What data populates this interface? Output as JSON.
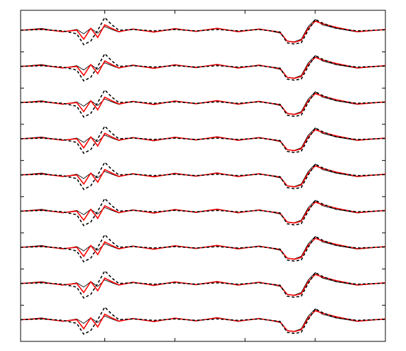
{
  "chart_data": {
    "type": "line",
    "x": [
      0,
      0.3,
      0.6,
      0.8,
      0.9,
      1.0,
      1.1,
      1.2,
      1.3,
      1.4,
      1.6,
      1.9,
      2.2,
      2.5,
      2.8,
      3.1,
      3.4,
      3.7,
      3.8,
      3.9,
      4.0,
      4.1,
      4.2,
      4.3,
      4.5,
      4.8,
      5.2
    ],
    "xlim": [
      0,
      5.2
    ],
    "ylim": [
      0,
      9.15
    ],
    "xticks": [
      1.2,
      2.2,
      3.2,
      4.2
    ],
    "yticks": [
      1,
      2,
      3,
      4,
      5,
      6,
      7,
      8
    ],
    "series": [
      {
        "color": "#000000",
        "values": [
          8.6,
          8.65,
          8.55,
          8.62,
          8.5,
          8.65,
          8.52,
          8.7,
          8.62,
          8.55,
          8.64,
          8.54,
          8.65,
          8.56,
          8.66,
          8.55,
          8.64,
          8.52,
          8.3,
          8.28,
          8.35,
          8.7,
          8.9,
          8.75,
          8.65,
          8.55,
          8.62
        ]
      },
      {
        "color": "#ff0000",
        "values": [
          8.6,
          8.63,
          8.56,
          8.6,
          8.35,
          8.65,
          8.4,
          8.75,
          8.65,
          8.56,
          8.63,
          8.55,
          8.64,
          8.57,
          8.65,
          8.56,
          8.63,
          8.54,
          8.3,
          8.27,
          8.32,
          8.65,
          8.85,
          8.78,
          8.68,
          8.56,
          8.62
        ]
      },
      {
        "color": "#000000",
        "dashed": true,
        "values": [
          8.6,
          8.62,
          8.58,
          8.5,
          8.2,
          8.3,
          8.6,
          8.95,
          8.75,
          8.6,
          8.62,
          8.58,
          8.62,
          8.58,
          8.62,
          8.58,
          8.62,
          8.55,
          8.25,
          8.22,
          8.25,
          8.6,
          8.9,
          8.8,
          8.65,
          8.58,
          8.61
        ]
      },
      {
        "color": "#000000",
        "values": [
          7.6,
          7.65,
          7.55,
          7.62,
          7.5,
          7.65,
          7.52,
          7.7,
          7.62,
          7.55,
          7.64,
          7.54,
          7.65,
          7.56,
          7.66,
          7.55,
          7.64,
          7.52,
          7.3,
          7.28,
          7.35,
          7.7,
          7.9,
          7.75,
          7.65,
          7.55,
          7.62
        ]
      },
      {
        "color": "#ff0000",
        "values": [
          7.6,
          7.63,
          7.56,
          7.6,
          7.35,
          7.65,
          7.4,
          7.75,
          7.65,
          7.56,
          7.63,
          7.55,
          7.64,
          7.57,
          7.65,
          7.56,
          7.63,
          7.54,
          7.3,
          7.27,
          7.32,
          7.65,
          7.85,
          7.78,
          7.68,
          7.56,
          7.62
        ]
      },
      {
        "color": "#000000",
        "dashed": true,
        "values": [
          7.6,
          7.62,
          7.58,
          7.5,
          7.2,
          7.3,
          7.6,
          7.95,
          7.75,
          7.6,
          7.62,
          7.58,
          7.62,
          7.58,
          7.62,
          7.58,
          7.62,
          7.55,
          7.25,
          7.22,
          7.25,
          7.6,
          7.9,
          7.8,
          7.65,
          7.58,
          7.61
        ]
      },
      {
        "color": "#000000",
        "values": [
          6.6,
          6.65,
          6.55,
          6.62,
          6.5,
          6.65,
          6.52,
          6.7,
          6.62,
          6.55,
          6.64,
          6.54,
          6.65,
          6.56,
          6.66,
          6.55,
          6.64,
          6.52,
          6.3,
          6.28,
          6.35,
          6.7,
          6.9,
          6.75,
          6.65,
          6.55,
          6.62
        ]
      },
      {
        "color": "#ff0000",
        "values": [
          6.6,
          6.63,
          6.56,
          6.6,
          6.35,
          6.65,
          6.4,
          6.75,
          6.65,
          6.56,
          6.63,
          6.55,
          6.64,
          6.57,
          6.65,
          6.56,
          6.63,
          6.54,
          6.3,
          6.27,
          6.32,
          6.65,
          6.85,
          6.78,
          6.68,
          6.56,
          6.62
        ]
      },
      {
        "color": "#000000",
        "dashed": true,
        "values": [
          6.6,
          6.62,
          6.58,
          6.5,
          6.2,
          6.3,
          6.6,
          6.95,
          6.75,
          6.6,
          6.62,
          6.58,
          6.62,
          6.58,
          6.62,
          6.58,
          6.62,
          6.55,
          6.25,
          6.22,
          6.25,
          6.6,
          6.9,
          6.8,
          6.65,
          6.58,
          6.61
        ]
      },
      {
        "color": "#000000",
        "values": [
          5.6,
          5.65,
          5.55,
          5.62,
          5.5,
          5.65,
          5.52,
          5.7,
          5.62,
          5.55,
          5.64,
          5.54,
          5.65,
          5.56,
          5.66,
          5.55,
          5.64,
          5.52,
          5.3,
          5.28,
          5.35,
          5.7,
          5.9,
          5.75,
          5.65,
          5.55,
          5.62
        ]
      },
      {
        "color": "#ff0000",
        "values": [
          5.6,
          5.63,
          5.56,
          5.6,
          5.35,
          5.65,
          5.4,
          5.75,
          5.65,
          5.56,
          5.63,
          5.55,
          5.64,
          5.57,
          5.65,
          5.56,
          5.63,
          5.54,
          5.3,
          5.27,
          5.32,
          5.65,
          5.85,
          5.78,
          5.68,
          5.56,
          5.62
        ]
      },
      {
        "color": "#000000",
        "dashed": true,
        "values": [
          5.6,
          5.62,
          5.58,
          5.5,
          5.2,
          5.3,
          5.6,
          5.95,
          5.75,
          5.6,
          5.62,
          5.58,
          5.62,
          5.58,
          5.62,
          5.58,
          5.62,
          5.55,
          5.25,
          5.22,
          5.25,
          5.6,
          5.9,
          5.8,
          5.65,
          5.58,
          5.61
        ]
      },
      {
        "color": "#000000",
        "values": [
          4.6,
          4.65,
          4.55,
          4.62,
          4.5,
          4.65,
          4.52,
          4.7,
          4.62,
          4.55,
          4.64,
          4.54,
          4.65,
          4.56,
          4.66,
          4.55,
          4.64,
          4.52,
          4.3,
          4.28,
          4.35,
          4.7,
          4.9,
          4.75,
          4.65,
          4.55,
          4.62
        ]
      },
      {
        "color": "#ff0000",
        "values": [
          4.6,
          4.63,
          4.56,
          4.6,
          4.35,
          4.65,
          4.4,
          4.75,
          4.65,
          4.56,
          4.63,
          4.55,
          4.64,
          4.57,
          4.65,
          4.56,
          4.63,
          4.54,
          4.3,
          4.27,
          4.32,
          4.65,
          4.85,
          4.78,
          4.68,
          4.56,
          4.62
        ]
      },
      {
        "color": "#000000",
        "dashed": true,
        "values": [
          4.6,
          4.62,
          4.58,
          4.5,
          4.2,
          4.3,
          4.6,
          4.95,
          4.75,
          4.6,
          4.62,
          4.58,
          4.62,
          4.58,
          4.62,
          4.58,
          4.62,
          4.55,
          4.25,
          4.22,
          4.25,
          4.6,
          4.9,
          4.8,
          4.65,
          4.58,
          4.61
        ]
      },
      {
        "color": "#000000",
        "values": [
          3.6,
          3.65,
          3.55,
          3.62,
          3.5,
          3.65,
          3.52,
          3.7,
          3.62,
          3.55,
          3.64,
          3.54,
          3.65,
          3.56,
          3.66,
          3.55,
          3.64,
          3.52,
          3.3,
          3.28,
          3.35,
          3.7,
          3.9,
          3.75,
          3.65,
          3.55,
          3.62
        ]
      },
      {
        "color": "#ff0000",
        "values": [
          3.6,
          3.63,
          3.56,
          3.6,
          3.35,
          3.65,
          3.4,
          3.75,
          3.65,
          3.56,
          3.63,
          3.55,
          3.64,
          3.57,
          3.65,
          3.56,
          3.63,
          3.54,
          3.3,
          3.27,
          3.32,
          3.65,
          3.85,
          3.78,
          3.68,
          3.56,
          3.62
        ]
      },
      {
        "color": "#000000",
        "dashed": true,
        "values": [
          3.6,
          3.62,
          3.58,
          3.5,
          3.2,
          3.3,
          3.6,
          3.95,
          3.75,
          3.6,
          3.62,
          3.58,
          3.62,
          3.58,
          3.62,
          3.58,
          3.62,
          3.55,
          3.25,
          3.22,
          3.25,
          3.6,
          3.9,
          3.8,
          3.65,
          3.58,
          3.61
        ]
      },
      {
        "color": "#000000",
        "values": [
          2.6,
          2.65,
          2.55,
          2.62,
          2.5,
          2.65,
          2.52,
          2.7,
          2.62,
          2.55,
          2.64,
          2.54,
          2.65,
          2.56,
          2.66,
          2.55,
          2.64,
          2.52,
          2.3,
          2.28,
          2.35,
          2.7,
          2.9,
          2.75,
          2.65,
          2.55,
          2.62
        ]
      },
      {
        "color": "#ff0000",
        "values": [
          2.6,
          2.63,
          2.56,
          2.6,
          2.35,
          2.65,
          2.4,
          2.75,
          2.65,
          2.56,
          2.63,
          2.55,
          2.64,
          2.57,
          2.65,
          2.56,
          2.63,
          2.54,
          2.3,
          2.27,
          2.32,
          2.65,
          2.85,
          2.78,
          2.68,
          2.56,
          2.62
        ]
      },
      {
        "color": "#000000",
        "dashed": true,
        "values": [
          2.6,
          2.62,
          2.58,
          2.5,
          2.2,
          2.3,
          2.6,
          2.95,
          2.75,
          2.6,
          2.62,
          2.58,
          2.62,
          2.58,
          2.62,
          2.58,
          2.62,
          2.55,
          2.25,
          2.22,
          2.25,
          2.6,
          2.9,
          2.8,
          2.65,
          2.58,
          2.61
        ]
      },
      {
        "color": "#000000",
        "values": [
          1.6,
          1.65,
          1.55,
          1.62,
          1.5,
          1.65,
          1.52,
          1.7,
          1.62,
          1.55,
          1.64,
          1.54,
          1.65,
          1.56,
          1.66,
          1.55,
          1.64,
          1.52,
          1.3,
          1.28,
          1.35,
          1.7,
          1.9,
          1.75,
          1.65,
          1.55,
          1.62
        ]
      },
      {
        "color": "#ff0000",
        "values": [
          1.6,
          1.63,
          1.56,
          1.6,
          1.35,
          1.65,
          1.4,
          1.75,
          1.65,
          1.56,
          1.63,
          1.55,
          1.64,
          1.57,
          1.65,
          1.56,
          1.63,
          1.54,
          1.3,
          1.27,
          1.32,
          1.65,
          1.85,
          1.78,
          1.68,
          1.56,
          1.62
        ]
      },
      {
        "color": "#000000",
        "dashed": true,
        "values": [
          1.6,
          1.62,
          1.58,
          1.5,
          1.2,
          1.3,
          1.6,
          1.95,
          1.75,
          1.6,
          1.62,
          1.58,
          1.62,
          1.58,
          1.62,
          1.58,
          1.62,
          1.55,
          1.25,
          1.22,
          1.25,
          1.6,
          1.9,
          1.8,
          1.65,
          1.58,
          1.61
        ]
      },
      {
        "color": "#000000",
        "values": [
          0.6,
          0.65,
          0.55,
          0.62,
          0.5,
          0.65,
          0.52,
          0.7,
          0.62,
          0.55,
          0.64,
          0.54,
          0.65,
          0.56,
          0.66,
          0.55,
          0.64,
          0.52,
          0.3,
          0.28,
          0.35,
          0.7,
          0.9,
          0.75,
          0.65,
          0.55,
          0.62
        ]
      },
      {
        "color": "#ff0000",
        "values": [
          0.6,
          0.63,
          0.56,
          0.6,
          0.35,
          0.65,
          0.4,
          0.75,
          0.65,
          0.56,
          0.63,
          0.55,
          0.64,
          0.57,
          0.65,
          0.56,
          0.63,
          0.54,
          0.3,
          0.27,
          0.32,
          0.65,
          0.85,
          0.78,
          0.68,
          0.56,
          0.62
        ]
      },
      {
        "color": "#000000",
        "dashed": true,
        "values": [
          0.6,
          0.62,
          0.58,
          0.5,
          0.2,
          0.3,
          0.6,
          0.95,
          0.75,
          0.6,
          0.62,
          0.58,
          0.62,
          0.58,
          0.62,
          0.58,
          0.62,
          0.55,
          0.25,
          0.22,
          0.25,
          0.6,
          0.9,
          0.8,
          0.65,
          0.58,
          0.61
        ]
      }
    ]
  }
}
